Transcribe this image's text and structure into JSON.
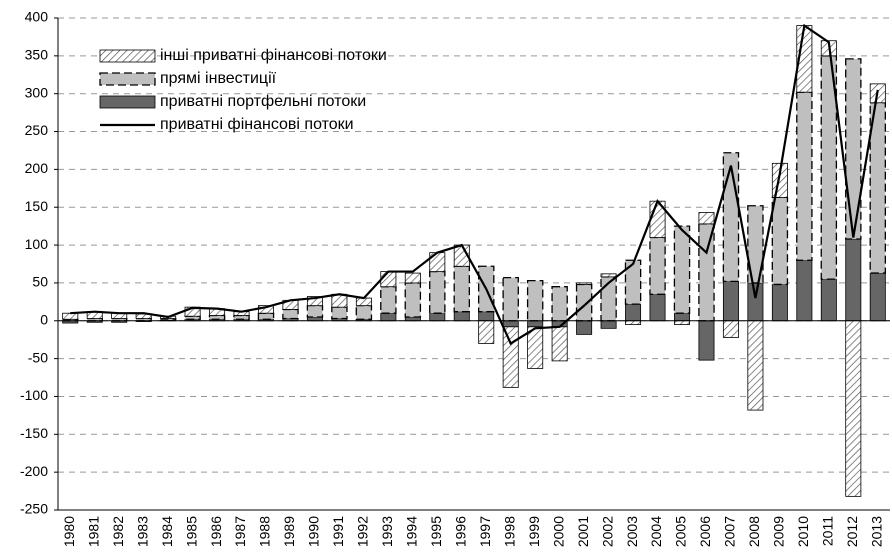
{
  "chart_data": {
    "type": "bar",
    "categories": [
      "1980",
      "1981",
      "1982",
      "1983",
      "1984",
      "1985",
      "1986",
      "1987",
      "1988",
      "1989",
      "1990",
      "1991",
      "1992",
      "1993",
      "1994",
      "1995",
      "1996",
      "1997",
      "1998",
      "1999",
      "2000",
      "2001",
      "2002",
      "2003",
      "2004",
      "2005",
      "2006",
      "2007",
      "2008",
      "2009",
      "2010",
      "2011",
      "2012",
      "2013"
    ],
    "series": [
      {
        "name": "інші приватні фінансові потоки",
        "type": "bar",
        "color": "#ffffff",
        "pattern": "hatch",
        "values": [
          8,
          9,
          7,
          6,
          3,
          12,
          9,
          5,
          10,
          12,
          12,
          17,
          10,
          20,
          13,
          25,
          28,
          -30,
          -80,
          -55,
          -45,
          2,
          4,
          -5,
          48,
          -5,
          15,
          -22,
          -118,
          45,
          88,
          20,
          -232,
          25
        ]
      },
      {
        "name": "прямі інвестиції",
        "type": "bar",
        "color": "#bfbfbf",
        "pattern": "dashed",
        "values": [
          2,
          3,
          3,
          3,
          2,
          4,
          5,
          5,
          8,
          12,
          15,
          15,
          18,
          35,
          45,
          55,
          60,
          60,
          57,
          53,
          45,
          48,
          58,
          58,
          75,
          115,
          128,
          170,
          102,
          115,
          222,
          295,
          238,
          225
        ]
      },
      {
        "name": "приватні портфельні потоки",
        "type": "bar",
        "color": "#666666",
        "values": [
          -3,
          -2,
          -2,
          -1,
          1,
          2,
          2,
          2,
          2,
          3,
          5,
          3,
          2,
          10,
          5,
          10,
          12,
          12,
          -8,
          -8,
          -8,
          -18,
          -10,
          22,
          35,
          10,
          -52,
          52,
          50,
          48,
          80,
          55,
          108,
          63
        ]
      },
      {
        "name": "приватні фінансові потоки",
        "type": "line",
        "color": "#000000",
        "values": [
          10,
          12,
          10,
          10,
          5,
          17,
          16,
          12,
          18,
          27,
          30,
          35,
          30,
          65,
          65,
          90,
          100,
          42,
          -30,
          -10,
          -8,
          20,
          50,
          75,
          158,
          120,
          90,
          205,
          30,
          195,
          390,
          368,
          110,
          305
        ]
      }
    ],
    "ylim": [
      -250,
      400
    ],
    "yticks": [
      -250,
      -200,
      -150,
      -100,
      -50,
      0,
      50,
      100,
      150,
      200,
      250,
      300,
      350,
      400
    ],
    "grid": true
  }
}
